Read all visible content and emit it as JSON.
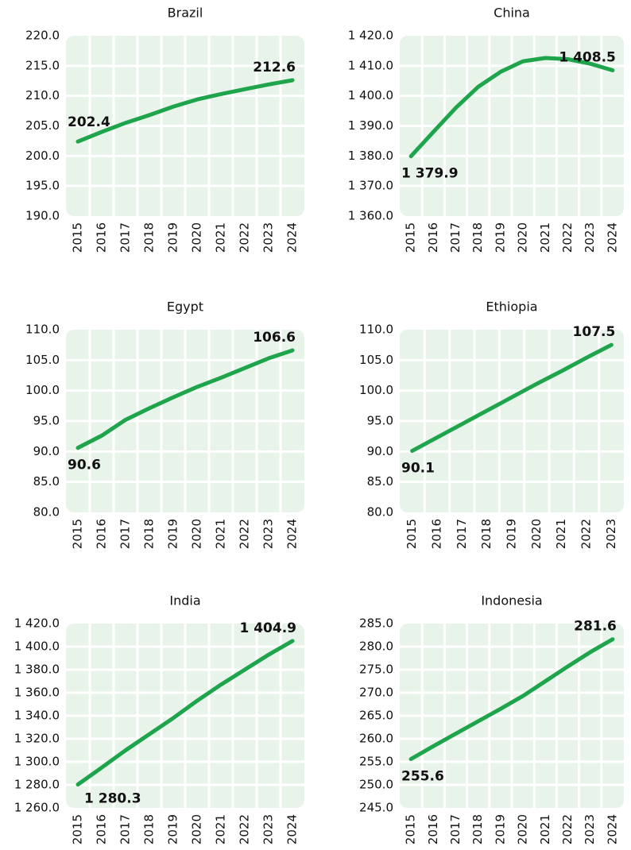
{
  "chart_data": [
    {
      "type": "line",
      "title": "Brazil",
      "categories": [
        "2015",
        "2016",
        "2017",
        "2018",
        "2019",
        "2020",
        "2021",
        "2022",
        "2023",
        "2024"
      ],
      "values": [
        202.4,
        204.0,
        205.5,
        206.8,
        208.2,
        209.4,
        210.3,
        211.1,
        211.9,
        212.6
      ],
      "value_labels": [
        "202.4",
        null,
        null,
        null,
        null,
        null,
        null,
        null,
        null,
        "212.6"
      ],
      "color": "#1ea54c",
      "ylim": [
        190,
        220
      ],
      "yticks": [
        {
          "value": 190,
          "label": "190.0"
        },
        {
          "value": 195,
          "label": "195.0"
        },
        {
          "value": 200,
          "label": "200.0"
        },
        {
          "value": 205,
          "label": "205.0"
        },
        {
          "value": 210,
          "label": "210.0"
        },
        {
          "value": 215,
          "label": "215.0"
        },
        {
          "value": 220,
          "label": "220.0"
        }
      ],
      "grid": true
    },
    {
      "type": "line",
      "title": "China",
      "categories": [
        "2015",
        "2016",
        "2017",
        "2018",
        "2019",
        "2020",
        "2021",
        "2022",
        "2023",
        "2024"
      ],
      "values": [
        1379.9,
        1388.0,
        1396.0,
        1403.0,
        1408.0,
        1411.5,
        1412.6,
        1412.2,
        1410.7,
        1408.5
      ],
      "value_labels": [
        "1 379.9",
        null,
        null,
        null,
        null,
        null,
        null,
        null,
        null,
        "1 408.5"
      ],
      "color": "#1ea54c",
      "ylim": [
        1360,
        1420
      ],
      "yticks": [
        {
          "value": 1360,
          "label": "1 360.0"
        },
        {
          "value": 1370,
          "label": "1 370.0"
        },
        {
          "value": 1380,
          "label": "1 380.0"
        },
        {
          "value": 1390,
          "label": "1 390.0"
        },
        {
          "value": 1400,
          "label": "1 400.0"
        },
        {
          "value": 1410,
          "label": "1 410.0"
        },
        {
          "value": 1420,
          "label": "1 420.0"
        }
      ],
      "grid": true
    },
    {
      "type": "line",
      "title": "Egypt",
      "categories": [
        "2015",
        "2016",
        "2017",
        "2018",
        "2019",
        "2020",
        "2021",
        "2022",
        "2023",
        "2024"
      ],
      "values": [
        90.6,
        92.6,
        95.2,
        97.1,
        98.9,
        100.6,
        102.1,
        103.7,
        105.3,
        106.6
      ],
      "value_labels": [
        "90.6",
        null,
        null,
        null,
        null,
        null,
        null,
        null,
        null,
        "106.6"
      ],
      "color": "#1ea54c",
      "ylim": [
        80,
        110
      ],
      "yticks": [
        {
          "value": 80,
          "label": "80.0"
        },
        {
          "value": 85,
          "label": "85.0"
        },
        {
          "value": 90,
          "label": "90.0"
        },
        {
          "value": 95,
          "label": "95.0"
        },
        {
          "value": 100,
          "label": "100.0"
        },
        {
          "value": 105,
          "label": "105.0"
        },
        {
          "value": 110,
          "label": "110.0"
        }
      ],
      "grid": true
    },
    {
      "type": "line",
      "title": "Ethiopia",
      "categories": [
        "2015",
        "2016",
        "2017",
        "2018",
        "2019",
        "2020",
        "2021",
        "2022",
        "2023"
      ],
      "values": [
        90.1,
        92.3,
        94.5,
        96.7,
        98.9,
        101.1,
        103.2,
        105.4,
        107.5
      ],
      "value_labels": [
        "90.1",
        null,
        null,
        null,
        null,
        null,
        null,
        null,
        "107.5"
      ],
      "color": "#1ea54c",
      "ylim": [
        80,
        110
      ],
      "yticks": [
        {
          "value": 80,
          "label": "80.0"
        },
        {
          "value": 85,
          "label": "85.0"
        },
        {
          "value": 90,
          "label": "90.0"
        },
        {
          "value": 95,
          "label": "95.0"
        },
        {
          "value": 100,
          "label": "100.0"
        },
        {
          "value": 105,
          "label": "105.0"
        },
        {
          "value": 110,
          "label": "110.0"
        }
      ],
      "grid": true
    },
    {
      "type": "line",
      "title": "India",
      "categories": [
        "2015",
        "2016",
        "2017",
        "2018",
        "2019",
        "2020",
        "2021",
        "2022",
        "2023",
        "2024"
      ],
      "values": [
        1280.3,
        1295.0,
        1310.0,
        1324.0,
        1338.0,
        1353.0,
        1367.0,
        1380.0,
        1393.0,
        1404.9
      ],
      "value_labels": [
        "1 280.3",
        null,
        null,
        null,
        null,
        null,
        null,
        null,
        null,
        "1 404.9"
      ],
      "color": "#1ea54c",
      "ylim": [
        1260,
        1420
      ],
      "yticks": [
        {
          "value": 1260,
          "label": "1 260.0"
        },
        {
          "value": 1280,
          "label": "1 280.0"
        },
        {
          "value": 1300,
          "label": "1 300.0"
        },
        {
          "value": 1320,
          "label": "1 320.0"
        },
        {
          "value": 1340,
          "label": "1 340.0"
        },
        {
          "value": 1360,
          "label": "1 360.0"
        },
        {
          "value": 1380,
          "label": "1 380.0"
        },
        {
          "value": 1400,
          "label": "1 400.0"
        },
        {
          "value": 1420,
          "label": "1 420.0"
        }
      ],
      "grid": true
    },
    {
      "type": "line",
      "title": "Indonesia",
      "categories": [
        "2015",
        "2016",
        "2017",
        "2018",
        "2019",
        "2020",
        "2021",
        "2022",
        "2023",
        "2024"
      ],
      "values": [
        255.6,
        258.4,
        261.1,
        263.8,
        266.5,
        269.3,
        272.5,
        275.7,
        278.8,
        281.6
      ],
      "value_labels": [
        "255.6",
        null,
        null,
        null,
        null,
        null,
        null,
        null,
        null,
        "281.6"
      ],
      "color": "#1ea54c",
      "ylim": [
        245,
        285
      ],
      "yticks": [
        {
          "value": 245,
          "label": "245.0"
        },
        {
          "value": 250,
          "label": "250.0"
        },
        {
          "value": 255,
          "label": "255.0"
        },
        {
          "value": 260,
          "label": "260.0"
        },
        {
          "value": 265,
          "label": "265.0"
        },
        {
          "value": 270,
          "label": "270.0"
        },
        {
          "value": 275,
          "label": "275.0"
        },
        {
          "value": 280,
          "label": "280.0"
        },
        {
          "value": 285,
          "label": "285.0"
        }
      ],
      "grid": true
    }
  ]
}
